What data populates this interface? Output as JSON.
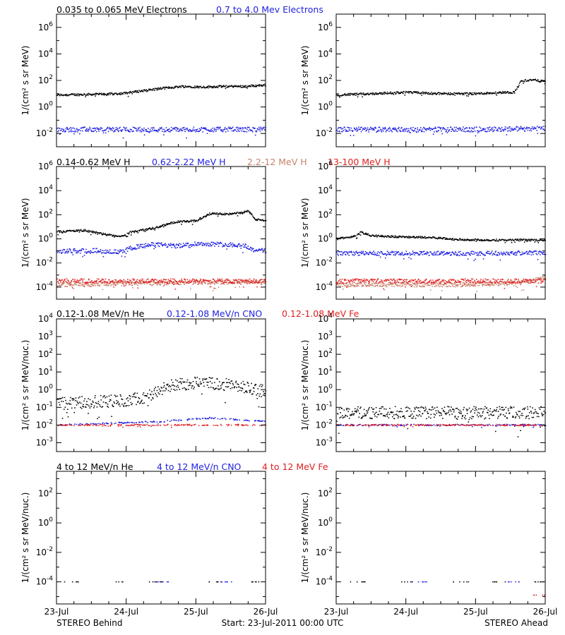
{
  "colors": {
    "black": "#000000",
    "blue": "#1f1fe0",
    "tan": "#c8826a",
    "red": "#e02020"
  },
  "footer": {
    "left": "STEREO Behind",
    "center": "Start: 23-Jul-2011 00:00 UTC",
    "right": "STEREO Ahead"
  },
  "row_legends": [
    [
      {
        "text": "0.035 to 0.065 MeV Electrons",
        "color": "black"
      },
      {
        "text": "0.7 to 4.0 Mev Electrons",
        "color": "blue"
      }
    ],
    [
      {
        "text": "0.14-0.62 MeV H",
        "color": "black"
      },
      {
        "text": "0.62-2.22 MeV H",
        "color": "blue"
      },
      {
        "text": "2.2-12 MeV H",
        "color": "tan"
      },
      {
        "text": "13-100 MeV H",
        "color": "red"
      }
    ],
    [
      {
        "text": "0.12-1.08 MeV/n He",
        "color": "black"
      },
      {
        "text": "0.12-1.08 MeV/n CNO",
        "color": "blue"
      },
      {
        "text": "0.12-1.08 MeV Fe",
        "color": "red"
      }
    ],
    [
      {
        "text": "4 to 12 MeV/n He",
        "color": "black"
      },
      {
        "text": "4 to 12 MeV/n CNO",
        "color": "blue"
      },
      {
        "text": "4 to 12 MeV Fe",
        "color": "red"
      }
    ]
  ],
  "chart_data": [
    {
      "type": "scatter",
      "panel": "electrons-behind",
      "yscale": "log",
      "ylabel": "1/(cm² s sr MeV)",
      "xlim": [
        0,
        3
      ],
      "ylim": [
        -3,
        7
      ],
      "yticks": [
        -2,
        0,
        2,
        4,
        6
      ],
      "xticks": [
        "23-Jul",
        "24-Jul",
        "25-Jul",
        "26-Jul"
      ],
      "series": [
        {
          "name": "0.035 to 0.065 MeV Electrons",
          "color": "black",
          "points": [
            [
              0,
              0.9
            ],
            [
              0.5,
              0.95
            ],
            [
              0.9,
              1.0
            ],
            [
              1.2,
              1.2
            ],
            [
              1.5,
              1.4
            ],
            [
              1.8,
              1.55
            ],
            [
              2.1,
              1.5
            ],
            [
              2.4,
              1.55
            ],
            [
              2.7,
              1.55
            ],
            [
              3,
              1.65
            ]
          ]
        },
        {
          "name": "0.7 to 4.0 Mev Electrons",
          "color": "blue",
          "points": [
            [
              0,
              -1.7
            ],
            [
              1,
              -1.7
            ],
            [
              2,
              -1.7
            ],
            [
              3,
              -1.7
            ]
          ]
        }
      ]
    },
    {
      "type": "scatter",
      "panel": "electrons-ahead",
      "yscale": "log",
      "ylabel": "1/(cm² s sr MeV)",
      "xlim": [
        0,
        3
      ],
      "ylim": [
        -3,
        7
      ],
      "yticks": [
        -2,
        0,
        2,
        4,
        6
      ],
      "xticks": [
        "23-Jul",
        "24-Jul",
        "25-Jul",
        "26-Jul"
      ],
      "series": [
        {
          "name": "0.035 to 0.065 MeV Electrons",
          "color": "black",
          "points": [
            [
              0,
              0.9
            ],
            [
              0.5,
              1.0
            ],
            [
              1.0,
              1.1
            ],
            [
              1.5,
              1.0
            ],
            [
              2.0,
              1.0
            ],
            [
              2.4,
              1.1
            ],
            [
              2.55,
              1.1
            ],
            [
              2.65,
              1.95
            ],
            [
              2.8,
              2.05
            ],
            [
              3,
              1.9
            ]
          ]
        },
        {
          "name": "0.7 to 4.0 Mev Electrons",
          "color": "blue",
          "points": [
            [
              0,
              -1.7
            ],
            [
              1,
              -1.7
            ],
            [
              2,
              -1.7
            ],
            [
              3,
              -1.6
            ]
          ]
        }
      ]
    },
    {
      "type": "scatter",
      "panel": "protons-behind",
      "yscale": "log",
      "ylabel": "1/(cm² s sr MeV)",
      "xlim": [
        0,
        3
      ],
      "ylim": [
        -5,
        6
      ],
      "yticks": [
        -4,
        -2,
        0,
        2,
        4,
        6
      ],
      "xticks": [
        "23-Jul",
        "24-Jul",
        "25-Jul",
        "26-Jul"
      ],
      "series": [
        {
          "name": "0.14-0.62 MeV H",
          "color": "black",
          "points": [
            [
              0,
              0.6
            ],
            [
              0.4,
              0.7
            ],
            [
              0.7,
              0.35
            ],
            [
              0.95,
              0.2
            ],
            [
              1.05,
              0.55
            ],
            [
              1.4,
              0.9
            ],
            [
              1.7,
              1.4
            ],
            [
              2.0,
              1.5
            ],
            [
              2.2,
              2.1
            ],
            [
              2.5,
              2.05
            ],
            [
              2.75,
              2.3
            ],
            [
              2.85,
              1.6
            ],
            [
              3,
              1.5
            ]
          ]
        },
        {
          "name": "0.62-2.22 MeV H",
          "color": "blue",
          "points": [
            [
              0,
              -1.05
            ],
            [
              0.5,
              -0.95
            ],
            [
              0.9,
              -1.1
            ],
            [
              1.1,
              -0.7
            ],
            [
              1.4,
              -0.45
            ],
            [
              1.7,
              -0.6
            ],
            [
              2.0,
              -0.4
            ],
            [
              2.4,
              -0.45
            ],
            [
              2.7,
              -0.55
            ],
            [
              2.8,
              -0.9
            ],
            [
              3,
              -1.0
            ]
          ]
        },
        {
          "name": "2.2-12 MeV H",
          "color": "tan",
          "points": [
            [
              0,
              -3.8
            ],
            [
              1,
              -3.7
            ],
            [
              2,
              -3.6
            ],
            [
              3,
              -3.6
            ]
          ]
        },
        {
          "name": "13-100 MeV H",
          "color": "red",
          "points": [
            [
              0,
              -3.5
            ],
            [
              1,
              -3.5
            ],
            [
              2,
              -3.5
            ],
            [
              3,
              -3.5
            ]
          ]
        }
      ]
    },
    {
      "type": "scatter",
      "panel": "protons-ahead",
      "yscale": "log",
      "ylabel": "1/(cm² s sr MeV)",
      "xlim": [
        0,
        3
      ],
      "ylim": [
        -5,
        6
      ],
      "yticks": [
        -4,
        -2,
        0,
        2,
        4,
        6
      ],
      "xticks": [
        "23-Jul",
        "24-Jul",
        "25-Jul",
        "26-Jul"
      ],
      "series": [
        {
          "name": "0.14-0.62 MeV H",
          "color": "black",
          "points": [
            [
              0,
              0.0
            ],
            [
              0.25,
              0.2
            ],
            [
              0.35,
              0.55
            ],
            [
              0.5,
              0.25
            ],
            [
              1.0,
              0.15
            ],
            [
              1.4,
              0.1
            ],
            [
              1.7,
              -0.05
            ],
            [
              2.2,
              -0.1
            ],
            [
              3,
              -0.1
            ]
          ]
        },
        {
          "name": "0.62-2.22 MeV H",
          "color": "blue",
          "points": [
            [
              0,
              -1.2
            ],
            [
              1,
              -1.2
            ],
            [
              2,
              -1.2
            ],
            [
              3,
              -1.15
            ]
          ]
        },
        {
          "name": "2.2-12 MeV H",
          "color": "tan",
          "points": [
            [
              0,
              -3.8
            ],
            [
              1,
              -3.8
            ],
            [
              2,
              -3.8
            ],
            [
              2.7,
              -3.6
            ],
            [
              3,
              -3.2
            ]
          ]
        },
        {
          "name": "13-100 MeV H",
          "color": "red",
          "points": [
            [
              0,
              -3.5
            ],
            [
              1,
              -3.5
            ],
            [
              2,
              -3.5
            ],
            [
              3,
              -3.5
            ]
          ]
        }
      ]
    },
    {
      "type": "scatter",
      "panel": "heavy-low-behind",
      "yscale": "log",
      "ylabel": "1/(cm² s sr MeV/nuc.)",
      "xlim": [
        0,
        3
      ],
      "ylim": [
        -3.5,
        4
      ],
      "yticks": [
        -3,
        -2,
        -1,
        0,
        1,
        2,
        3,
        4
      ],
      "xticks": [
        "23-Jul",
        "24-Jul",
        "25-Jul",
        "26-Jul"
      ],
      "series": [
        {
          "name": "0.12-1.08 MeV/n He",
          "color": "black",
          "points": [
            [
              0,
              -0.8
            ],
            [
              0.5,
              -0.7
            ],
            [
              1.0,
              -0.6
            ],
            [
              1.3,
              -0.4
            ],
            [
              1.6,
              0.2
            ],
            [
              2.0,
              0.4
            ],
            [
              2.4,
              0.3
            ],
            [
              2.7,
              0.1
            ],
            [
              3,
              -0.1
            ]
          ]
        },
        {
          "name": "0.12-1.08 MeV/n CNO",
          "color": "blue",
          "points": [
            [
              0,
              -2.0
            ],
            [
              1.5,
              -1.8
            ],
            [
              2.2,
              -1.6
            ],
            [
              3,
              -1.8
            ]
          ]
        },
        {
          "name": "0.12-1.08 MeV Fe",
          "color": "red",
          "points": [
            [
              0,
              -2.0
            ],
            [
              1,
              -2.0
            ],
            [
              2,
              -2.0
            ],
            [
              3,
              -2.0
            ]
          ]
        }
      ]
    },
    {
      "type": "scatter",
      "panel": "heavy-low-ahead",
      "yscale": "log",
      "ylabel": "1/(cm² s sr MeV/nuc.)",
      "xlim": [
        0,
        3
      ],
      "ylim": [
        -3.5,
        4
      ],
      "yticks": [
        -3,
        -2,
        -1,
        0,
        1,
        2,
        3,
        4
      ],
      "xticks": [
        "23-Jul",
        "24-Jul",
        "25-Jul",
        "26-Jul"
      ],
      "series": [
        {
          "name": "0.12-1.08 MeV/n He",
          "color": "black",
          "points": [
            [
              0,
              -1.3
            ],
            [
              1,
              -1.3
            ],
            [
              2,
              -1.3
            ],
            [
              3,
              -1.3
            ]
          ]
        },
        {
          "name": "0.12-1.08 MeV/n CNO",
          "color": "blue",
          "points": [
            [
              0,
              -2.0
            ],
            [
              1,
              -2.0
            ],
            [
              2,
              -2.0
            ],
            [
              3,
              -2.0
            ]
          ]
        },
        {
          "name": "0.12-1.08 MeV Fe",
          "color": "red",
          "points": [
            [
              0,
              -2.0
            ],
            [
              1,
              -2.0
            ],
            [
              2,
              -2.0
            ],
            [
              3,
              -2.0
            ]
          ]
        }
      ]
    },
    {
      "type": "scatter",
      "panel": "heavy-high-behind",
      "yscale": "log",
      "ylabel": "1/(cm² s sr MeV/nuc.)",
      "xlim": [
        0,
        3
      ],
      "ylim": [
        -5.5,
        3.5
      ],
      "yticks": [
        -4,
        -2,
        0,
        2
      ],
      "xticks": [
        "23-Jul",
        "24-Jul",
        "25-Jul",
        "26-Jul"
      ],
      "series": [
        {
          "name": "4 to 12 MeV/n He",
          "color": "black",
          "points": [
            [
              0.2,
              -4.0
            ],
            [
              0.9,
              -4.0
            ],
            [
              1.4,
              -4.0
            ],
            [
              2.3,
              -4.0
            ],
            [
              2.9,
              -4.0
            ]
          ]
        },
        {
          "name": "4 to 12 MeV/n CNO",
          "color": "blue",
          "points": [
            [
              1.5,
              -4.0
            ],
            [
              2.4,
              -4.0
            ]
          ]
        },
        {
          "name": "4 to 12 MeV Fe",
          "color": "red",
          "points": []
        }
      ]
    },
    {
      "type": "scatter",
      "panel": "heavy-high-ahead",
      "yscale": "log",
      "ylabel": "1/(cm² s sr MeV/nuc.)",
      "xlim": [
        0,
        3
      ],
      "ylim": [
        -5.5,
        3.5
      ],
      "yticks": [
        -4,
        -2,
        0,
        2
      ],
      "xticks": [
        "23-Jul",
        "24-Jul",
        "25-Jul",
        "26-Jul"
      ],
      "series": [
        {
          "name": "4 to 12 MeV/n He",
          "color": "black",
          "points": [
            [
              0.3,
              -4.0
            ],
            [
              1.0,
              -4.0
            ],
            [
              1.8,
              -4.0
            ],
            [
              2.3,
              -4.0
            ],
            [
              2.9,
              -4.0
            ]
          ]
        },
        {
          "name": "4 to 12 MeV/n CNO",
          "color": "blue",
          "points": [
            [
              1.2,
              -4.0
            ],
            [
              2.5,
              -4.0
            ]
          ]
        },
        {
          "name": "4 to 12 MeV Fe",
          "color": "red",
          "points": [
            [
              2.9,
              -4.9
            ]
          ]
        }
      ]
    }
  ]
}
